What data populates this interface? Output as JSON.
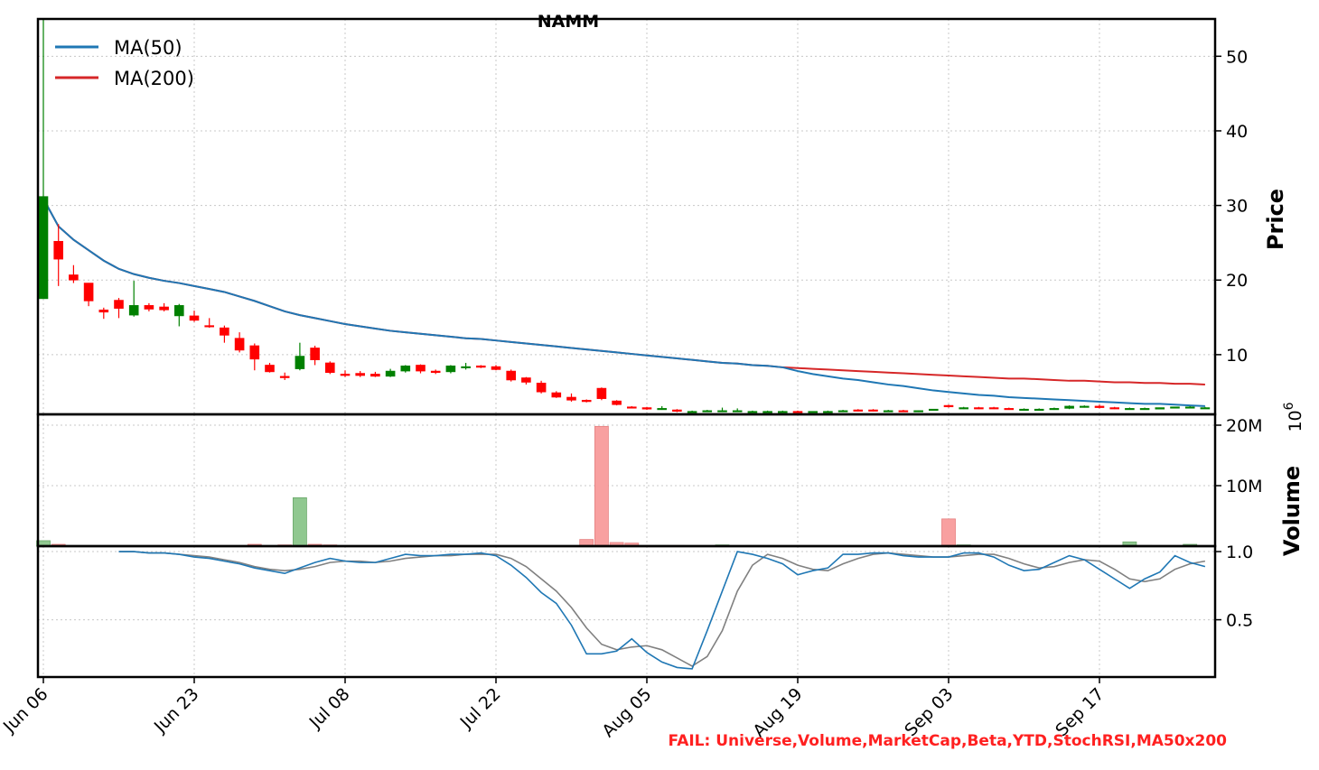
{
  "chart_data": {
    "type": "candlestick",
    "title": "NAMM",
    "x_tick_labels": [
      "Jun 06",
      "Jun 23",
      "Jul 08",
      "Jul 22",
      "Aug 05",
      "Aug 19",
      "Sep 03",
      "Sep 17"
    ],
    "x_tick_index": [
      0,
      10,
      20,
      30,
      40,
      50,
      60,
      70
    ],
    "price_panel": {
      "ylabel": "Price",
      "ylim": [
        2,
        55
      ],
      "yticks": [
        10,
        20,
        30,
        40,
        50
      ],
      "legend": [
        {
          "name": "MA(50)",
          "color": "#1f77b4"
        },
        {
          "name": "MA(200)",
          "color": "#d62728"
        }
      ],
      "ohlc": [
        [
          17.5,
          55,
          17.5,
          31.2
        ],
        [
          25.2,
          27.5,
          19.2,
          22.8
        ],
        [
          20.7,
          22.0,
          19.6,
          20.0
        ],
        [
          19.6,
          19.6,
          16.5,
          17.2
        ],
        [
          16.0,
          16.3,
          14.8,
          15.7
        ],
        [
          17.3,
          17.6,
          14.9,
          16.2
        ],
        [
          15.3,
          19.9,
          15.1,
          16.6
        ],
        [
          16.6,
          16.9,
          15.8,
          16.1
        ],
        [
          16.4,
          16.9,
          15.8,
          16.0
        ],
        [
          15.2,
          16.8,
          13.8,
          16.6
        ],
        [
          15.2,
          15.9,
          14.4,
          14.6
        ],
        [
          13.9,
          14.9,
          13.6,
          13.8
        ],
        [
          13.6,
          13.9,
          11.6,
          12.6
        ],
        [
          12.2,
          13.0,
          10.3,
          10.6
        ],
        [
          11.2,
          11.5,
          7.9,
          9.4
        ],
        [
          8.6,
          8.9,
          7.6,
          7.7
        ],
        [
          7.1,
          7.6,
          6.6,
          6.9
        ],
        [
          8.1,
          11.6,
          7.9,
          9.8
        ],
        [
          10.9,
          11.2,
          8.6,
          9.3
        ],
        [
          8.9,
          9.1,
          7.4,
          7.6
        ],
        [
          7.4,
          7.9,
          7.0,
          7.2
        ],
        [
          7.5,
          7.8,
          7.0,
          7.2
        ],
        [
          7.4,
          7.7,
          7.0,
          7.1
        ],
        [
          7.1,
          8.1,
          7.0,
          7.8
        ],
        [
          7.8,
          8.6,
          7.6,
          8.5
        ],
        [
          8.6,
          8.7,
          7.5,
          7.8
        ],
        [
          7.8,
          8.0,
          7.4,
          7.6
        ],
        [
          7.7,
          8.6,
          7.5,
          8.5
        ],
        [
          8.4,
          8.9,
          8.0,
          8.4
        ],
        [
          8.5,
          8.6,
          8.2,
          8.3
        ],
        [
          8.4,
          8.6,
          7.9,
          8.0
        ],
        [
          7.8,
          8.0,
          6.4,
          6.6
        ],
        [
          6.9,
          7.0,
          6.0,
          6.3
        ],
        [
          6.2,
          6.5,
          4.8,
          5.0
        ],
        [
          4.9,
          5.1,
          4.2,
          4.3
        ],
        [
          4.3,
          4.8,
          3.7,
          3.9
        ],
        [
          3.9,
          4.0,
          3.6,
          3.7
        ],
        [
          5.5,
          5.6,
          3.9,
          4.1
        ],
        [
          3.8,
          3.9,
          3.2,
          3.3
        ],
        [
          3.0,
          3.1,
          2.8,
          2.9
        ],
        [
          2.9,
          3.0,
          2.6,
          2.7
        ],
        [
          2.8,
          3.1,
          2.6,
          2.8
        ],
        [
          2.6,
          2.7,
          2.3,
          2.4
        ],
        [
          2.4,
          2.5,
          2.3,
          2.4
        ],
        [
          2.4,
          2.6,
          2.3,
          2.5
        ],
        [
          2.4,
          2.9,
          2.3,
          2.5
        ],
        [
          2.4,
          2.8,
          2.3,
          2.5
        ],
        [
          2.4,
          2.5,
          2.3,
          2.4
        ],
        [
          2.4,
          2.5,
          2.3,
          2.4
        ],
        [
          2.3,
          2.5,
          2.2,
          2.4
        ],
        [
          2.4,
          2.5,
          2.3,
          2.3
        ],
        [
          2.3,
          2.4,
          2.2,
          2.4
        ],
        [
          2.3,
          2.5,
          2.2,
          2.4
        ],
        [
          2.4,
          2.6,
          2.3,
          2.5
        ],
        [
          2.6,
          2.7,
          2.4,
          2.5
        ],
        [
          2.6,
          2.7,
          2.4,
          2.5
        ],
        [
          2.5,
          2.6,
          2.4,
          2.5
        ],
        [
          2.5,
          2.6,
          2.4,
          2.4
        ],
        [
          2.4,
          2.5,
          2.3,
          2.5
        ],
        [
          2.6,
          2.7,
          2.5,
          2.7
        ],
        [
          3.2,
          3.3,
          2.9,
          3.0
        ],
        [
          2.9,
          3.0,
          2.7,
          2.9
        ],
        [
          2.9,
          3.0,
          2.7,
          2.8
        ],
        [
          2.9,
          3.0,
          2.7,
          2.8
        ],
        [
          2.8,
          2.9,
          2.6,
          2.7
        ],
        [
          2.6,
          2.8,
          2.5,
          2.7
        ],
        [
          2.6,
          2.8,
          2.5,
          2.7
        ],
        [
          2.7,
          2.9,
          2.6,
          2.8
        ],
        [
          2.8,
          3.2,
          2.7,
          3.1
        ],
        [
          3.1,
          3.2,
          2.9,
          3.1
        ],
        [
          3.1,
          3.3,
          2.8,
          2.9
        ],
        [
          2.9,
          3.0,
          2.7,
          2.8
        ],
        [
          2.8,
          2.9,
          2.7,
          2.8
        ],
        [
          2.8,
          2.9,
          2.7,
          2.8
        ],
        [
          2.7,
          2.9,
          2.7,
          2.9
        ],
        [
          2.9,
          3.0,
          2.8,
          3.0
        ],
        [
          3.0,
          3.1,
          2.9,
          3.0
        ],
        [
          2.9,
          3.0,
          2.8,
          2.9
        ]
      ],
      "ma50": [
        30.9,
        27.2,
        25.4,
        24.0,
        22.6,
        21.5,
        20.8,
        20.3,
        19.9,
        19.6,
        19.2,
        18.8,
        18.4,
        17.8,
        17.2,
        16.5,
        15.8,
        15.3,
        14.9,
        14.5,
        14.1,
        13.8,
        13.5,
        13.2,
        13.0,
        12.8,
        12.6,
        12.4,
        12.2,
        12.1,
        11.9,
        11.7,
        11.5,
        11.3,
        11.1,
        10.9,
        10.7,
        10.5,
        10.3,
        10.1,
        9.9,
        9.7,
        9.5,
        9.3,
        9.1,
        8.9,
        8.8,
        8.6,
        8.5,
        8.3,
        7.8,
        7.4,
        7.1,
        6.8,
        6.6,
        6.3,
        6.0,
        5.8,
        5.5,
        5.2,
        5.0,
        4.8,
        4.6,
        4.5,
        4.3,
        4.2,
        4.1,
        4.0,
        3.9,
        3.8,
        3.7,
        3.6,
        3.5,
        3.4,
        3.4,
        3.3,
        3.2,
        3.1
      ],
      "ma200": [
        30.9,
        27.2,
        25.4,
        24.0,
        22.6,
        21.5,
        20.8,
        20.3,
        19.9,
        19.6,
        19.2,
        18.8,
        18.4,
        17.8,
        17.2,
        16.5,
        15.8,
        15.3,
        14.9,
        14.5,
        14.1,
        13.8,
        13.5,
        13.2,
        13.0,
        12.8,
        12.6,
        12.4,
        12.2,
        12.1,
        11.9,
        11.7,
        11.5,
        11.3,
        11.1,
        10.9,
        10.7,
        10.5,
        10.3,
        10.1,
        9.9,
        9.7,
        9.5,
        9.3,
        9.1,
        8.9,
        8.8,
        8.6,
        8.5,
        8.3,
        8.2,
        8.1,
        8.0,
        7.9,
        7.8,
        7.7,
        7.6,
        7.5,
        7.4,
        7.3,
        7.2,
        7.1,
        7.0,
        6.9,
        6.8,
        6.8,
        6.7,
        6.6,
        6.5,
        6.5,
        6.4,
        6.3,
        6.3,
        6.2,
        6.2,
        6.1,
        6.1,
        6.0
      ]
    },
    "volume_panel": {
      "ylabel": "Volume",
      "unit": "10^6",
      "ylim": [
        0,
        20000000
      ],
      "yticks": [
        10000000,
        20000000
      ],
      "ytick_labels": [
        "10M",
        "20M"
      ],
      "values": [
        900000,
        300000,
        0,
        0,
        0,
        0,
        0,
        0,
        0,
        0,
        0,
        0,
        0,
        0,
        300000,
        0,
        200000,
        8000000,
        300000,
        200000,
        0,
        0,
        0,
        0,
        0,
        0,
        0,
        0,
        0,
        0,
        0,
        0,
        0,
        0,
        0,
        0,
        1100000,
        19800000,
        600000,
        500000,
        100000,
        100000,
        100000,
        0,
        0,
        200000,
        0,
        100000,
        0,
        0,
        0,
        0,
        0,
        0,
        0,
        0,
        0,
        0,
        0,
        100000,
        4500000,
        200000,
        100000,
        0,
        0,
        0,
        0,
        0,
        0,
        100000,
        0,
        0,
        700000,
        100000,
        0,
        0,
        300000,
        0
      ],
      "up_color": "#90c890",
      "down_color": "#f8a0a0"
    },
    "stochrsi_panel": {
      "ylim": [
        0.08,
        1.04
      ],
      "yticks": [
        0.5,
        1.0
      ],
      "ytick_labels": [
        "0.5",
        "1.0"
      ],
      "k": [
        null,
        null,
        null,
        null,
        null,
        1.0,
        1.0,
        0.99,
        0.99,
        0.98,
        0.96,
        0.95,
        0.93,
        0.91,
        0.88,
        0.86,
        0.84,
        0.88,
        0.92,
        0.95,
        0.93,
        0.92,
        0.92,
        0.95,
        0.98,
        0.97,
        0.97,
        0.98,
        0.98,
        0.99,
        0.97,
        0.9,
        0.81,
        0.7,
        0.62,
        0.46,
        0.25,
        0.25,
        0.27,
        0.36,
        0.26,
        0.19,
        0.15,
        0.14,
        0.42,
        0.71,
        1.0,
        0.98,
        0.95,
        0.91,
        0.83,
        0.86,
        0.88,
        0.98,
        0.98,
        0.99,
        0.99,
        0.97,
        0.96,
        0.96,
        0.96,
        0.99,
        0.99,
        0.96,
        0.9,
        0.86,
        0.87,
        0.92,
        0.97,
        0.94,
        0.87,
        0.8,
        0.73,
        0.8,
        0.85,
        0.97,
        0.92,
        0.89
      ],
      "d": [
        null,
        null,
        null,
        null,
        null,
        1.0,
        1.0,
        0.99,
        0.99,
        0.98,
        0.97,
        0.96,
        0.94,
        0.92,
        0.89,
        0.87,
        0.86,
        0.87,
        0.89,
        0.92,
        0.93,
        0.93,
        0.92,
        0.93,
        0.95,
        0.96,
        0.97,
        0.97,
        0.98,
        0.98,
        0.98,
        0.95,
        0.89,
        0.8,
        0.71,
        0.59,
        0.44,
        0.32,
        0.28,
        0.3,
        0.31,
        0.28,
        0.22,
        0.16,
        0.23,
        0.42,
        0.71,
        0.9,
        0.98,
        0.95,
        0.9,
        0.87,
        0.86,
        0.91,
        0.95,
        0.98,
        0.99,
        0.98,
        0.97,
        0.96,
        0.96,
        0.97,
        0.98,
        0.98,
        0.95,
        0.91,
        0.88,
        0.89,
        0.92,
        0.94,
        0.93,
        0.87,
        0.8,
        0.78,
        0.8,
        0.87,
        0.91,
        0.93
      ],
      "k_color": "#1f77b4",
      "d_color": "#808080"
    },
    "up_color": "#008000",
    "down_color": "#ff0000",
    "grid": true,
    "legend_position": "top-left",
    "footer_note": "FAIL: Universe,Volume,MarketCap,Beta,YTD,StochRSI,MA50x200"
  }
}
